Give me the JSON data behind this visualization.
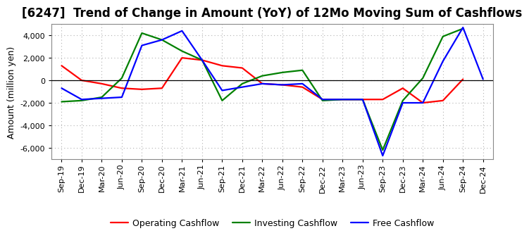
{
  "title": "[6247]  Trend of Change in Amount (YoY) of 12Mo Moving Sum of Cashflows",
  "ylabel": "Amount (million yen)",
  "x_labels": [
    "Sep-19",
    "Dec-19",
    "Mar-20",
    "Jun-20",
    "Sep-20",
    "Dec-20",
    "Mar-21",
    "Jun-21",
    "Sep-21",
    "Dec-21",
    "Mar-22",
    "Jun-22",
    "Sep-22",
    "Dec-22",
    "Mar-23",
    "Jun-23",
    "Sep-23",
    "Dec-23",
    "Mar-24",
    "Jun-24",
    "Sep-24",
    "Dec-24"
  ],
  "operating": [
    1300,
    0,
    -300,
    -700,
    -800,
    -700,
    2000,
    1800,
    1300,
    1100,
    -300,
    -400,
    -600,
    -1700,
    -1700,
    -1700,
    -1700,
    -700,
    -2000,
    -1800,
    100,
    null
  ],
  "investing": [
    -1900,
    -1800,
    -1500,
    200,
    4200,
    3600,
    2600,
    1800,
    -1800,
    -300,
    400,
    700,
    900,
    -1800,
    -1700,
    -1700,
    -6200,
    -1800,
    200,
    3900,
    4600,
    null
  ],
  "free": [
    -700,
    -1700,
    -1600,
    -1500,
    3100,
    3600,
    4400,
    1800,
    -900,
    -600,
    -300,
    -400,
    -300,
    -1700,
    -1700,
    -1700,
    -6700,
    -2000,
    -2000,
    1700,
    4700,
    100
  ],
  "operating_color": "#ff0000",
  "investing_color": "#008000",
  "free_color": "#0000ff",
  "ylim": [
    -7000,
    5000
  ],
  "yticks": [
    -6000,
    -4000,
    -2000,
    0,
    2000,
    4000
  ],
  "bg_color": "#ffffff",
  "grid_color": "#b0b0b0",
  "title_fontsize": 12,
  "axis_fontsize": 9,
  "tick_fontsize": 8,
  "legend_fontsize": 9
}
